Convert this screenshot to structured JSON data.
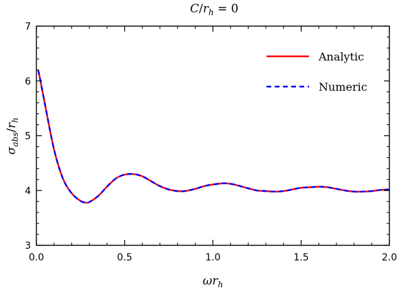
{
  "chart_data": {
    "type": "line",
    "title": "C/r_h = 0",
    "xlabel": "ωr_h",
    "ylabel": "σ_abs/r_h",
    "xlim": [
      0.0,
      2.0
    ],
    "ylim": [
      3,
      7
    ],
    "x_ticks": [
      "0.0",
      "0.5",
      "1.0",
      "1.5",
      "2.0"
    ],
    "y_ticks": [
      "3",
      "4",
      "5",
      "6",
      "7"
    ],
    "grid": false,
    "legend_position": "top-right",
    "x": [
      0.01,
      0.02,
      0.05,
      0.1,
      0.15,
      0.2,
      0.25,
      0.28,
      0.3,
      0.35,
      0.4,
      0.45,
      0.5,
      0.55,
      0.6,
      0.65,
      0.7,
      0.75,
      0.8,
      0.84,
      0.9,
      0.95,
      1.0,
      1.05,
      1.08,
      1.12,
      1.2,
      1.25,
      1.3,
      1.35,
      1.4,
      1.45,
      1.5,
      1.55,
      1.6,
      1.65,
      1.7,
      1.75,
      1.8,
      1.85,
      1.9,
      1.95,
      2.0
    ],
    "series": [
      {
        "name": "Analytic",
        "color": "#ff0000",
        "style": "solid",
        "values": [
          6.2,
          6.05,
          5.55,
          4.75,
          4.22,
          3.95,
          3.81,
          3.78,
          3.79,
          3.9,
          4.07,
          4.22,
          4.29,
          4.3,
          4.26,
          4.17,
          4.08,
          4.02,
          3.99,
          3.99,
          4.03,
          4.08,
          4.11,
          4.13,
          4.13,
          4.11,
          4.04,
          4.0,
          3.99,
          3.98,
          3.99,
          4.02,
          4.05,
          4.06,
          4.07,
          4.06,
          4.03,
          4.0,
          3.98,
          3.98,
          3.99,
          4.01,
          4.02
        ]
      },
      {
        "name": "Numeric",
        "color": "#0000ff",
        "style": "dashed",
        "values": [
          6.2,
          6.05,
          5.55,
          4.75,
          4.22,
          3.95,
          3.81,
          3.78,
          3.79,
          3.9,
          4.07,
          4.22,
          4.29,
          4.3,
          4.26,
          4.17,
          4.08,
          4.02,
          3.99,
          3.99,
          4.03,
          4.08,
          4.11,
          4.13,
          4.13,
          4.11,
          4.04,
          4.0,
          3.99,
          3.98,
          3.99,
          4.02,
          4.05,
          4.06,
          4.07,
          4.06,
          4.03,
          4.0,
          3.98,
          3.98,
          3.99,
          4.01,
          4.02
        ]
      }
    ]
  }
}
